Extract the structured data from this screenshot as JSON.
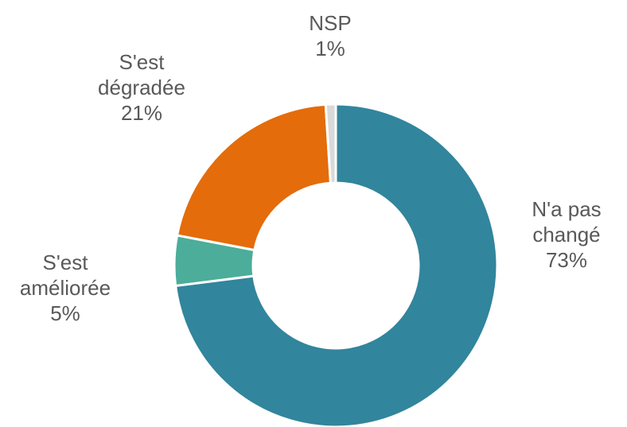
{
  "chart_data": {
    "type": "donut",
    "categories": [
      "N'a pas changé",
      "S'est améliorée",
      "S'est dégradée",
      "NSP"
    ],
    "values": [
      73,
      5,
      21,
      1
    ],
    "value_labels": [
      "73%",
      "5%",
      "21%",
      "1%"
    ],
    "colors": [
      "#31859c",
      "#4bad9a",
      "#e46c0a",
      "#d9d9d9"
    ]
  }
}
